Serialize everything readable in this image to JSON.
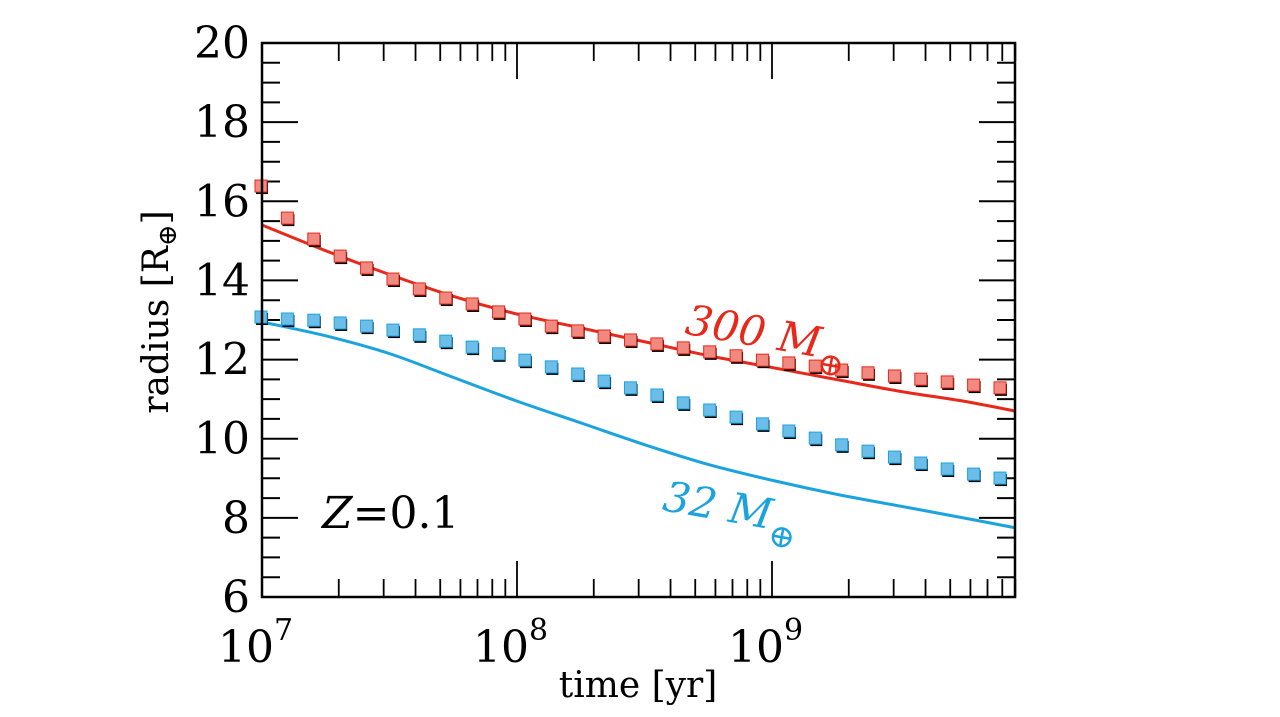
{
  "chart_data": {
    "type": "scatter",
    "title": "",
    "xlabel": "time [yr]",
    "ylabel": "radius [R",
    "ylabel_subscript_symbol": "⊕",
    "ylabel_close": "]",
    "xscale": "log",
    "xlim": [
      10000000.0,
      9000000000.0
    ],
    "ylim": [
      6,
      20
    ],
    "grid": false,
    "x_ticks": [
      {
        "value": 7,
        "base": "10",
        "exp": "7"
      },
      {
        "value": 8,
        "base": "10",
        "exp": "8"
      },
      {
        "value": 9,
        "base": "10",
        "exp": "9"
      }
    ],
    "y_ticks": [
      6,
      8,
      10,
      12,
      14,
      16,
      18,
      20
    ],
    "y_tick_labels": [
      "6",
      "8",
      "10",
      "12",
      "14",
      "16",
      "18",
      "20"
    ],
    "annotation": {
      "italic": "Z",
      "rest": "=0.1"
    },
    "colors": {
      "red": "#e8281a",
      "red_marker": "#f08a80",
      "blue": "#1ba3e0",
      "blue_marker": "#6cbde8"
    },
    "series": [
      {
        "name": "300 M⊕ model (line)",
        "kind": "line",
        "color": "red",
        "log10_x": [
          7.0,
          7.25,
          7.5,
          7.75,
          8.0,
          8.25,
          8.5,
          8.75,
          9.0,
          9.25,
          9.5,
          9.75,
          9.953
        ],
        "values": [
          15.4,
          14.75,
          14.15,
          13.6,
          13.15,
          12.8,
          12.45,
          12.1,
          11.8,
          11.5,
          11.2,
          10.95,
          10.7
        ]
      },
      {
        "name": "300 M⊕ observations (squares)",
        "kind": "markers",
        "color": "red",
        "log10_x_start": 7.0,
        "log10_x_step": 0.1035,
        "values": [
          16.36,
          15.55,
          15.02,
          14.59,
          14.29,
          14.01,
          13.76,
          13.53,
          13.38,
          13.18,
          13.0,
          12.82,
          12.7,
          12.57,
          12.47,
          12.37,
          12.27,
          12.17,
          12.07,
          11.96,
          11.89,
          11.81,
          11.71,
          11.64,
          11.56,
          11.48,
          11.41,
          11.33,
          11.26
        ]
      },
      {
        "name": "32 M⊕ model (line)",
        "kind": "line",
        "color": "blue",
        "log10_x": [
          7.0,
          7.25,
          7.5,
          7.75,
          8.0,
          8.25,
          8.5,
          8.75,
          9.0,
          9.25,
          9.5,
          9.75,
          9.953
        ],
        "values": [
          12.95,
          12.6,
          12.15,
          11.55,
          10.95,
          10.4,
          9.85,
          9.35,
          8.95,
          8.6,
          8.3,
          8.0,
          7.75
        ]
      },
      {
        "name": "32 M⊕ observations (squares)",
        "kind": "markers",
        "color": "blue",
        "log10_x_start": 7.0,
        "log10_x_step": 0.1035,
        "values": [
          13.05,
          13.0,
          12.97,
          12.9,
          12.82,
          12.72,
          12.6,
          12.44,
          12.29,
          12.12,
          11.96,
          11.79,
          11.61,
          11.43,
          11.26,
          11.08,
          10.88,
          10.7,
          10.52,
          10.35,
          10.17,
          9.99,
          9.82,
          9.66,
          9.51,
          9.36,
          9.21,
          9.08,
          8.98
        ]
      }
    ],
    "labels": [
      {
        "text": "300 ",
        "mass": "M",
        "sub": "⊕",
        "color": "red",
        "log10_x": 8.97,
        "value": 12.3
      },
      {
        "text": "32 ",
        "mass": "M",
        "sub": "⊕",
        "color": "blue",
        "log10_x": 8.83,
        "value": 7.9
      }
    ]
  }
}
